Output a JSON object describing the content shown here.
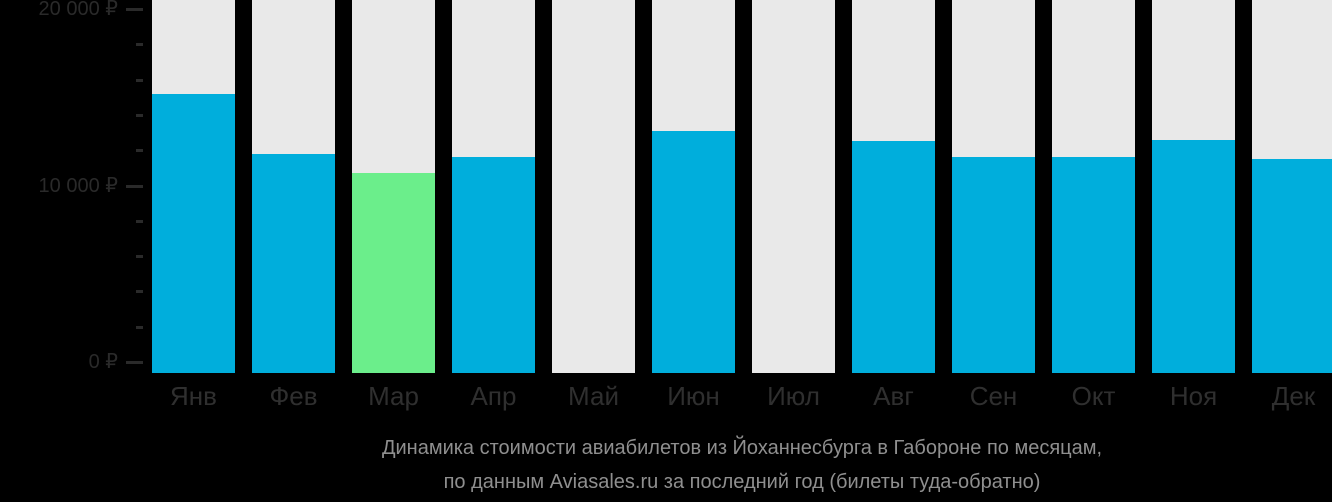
{
  "chart_data": {
    "type": "bar",
    "title": "Динамика стоимости авиабилетов из Йоханнесбурга в Габороне по месяцам, по данным Aviasales.ru за последний год (билеты туда-обратно)",
    "title_lines": [
      "Динамика стоимости авиабилетов из Йоханнесбурга в Габороне по месяцам,",
      "по данным Aviasales.ru за последний год (билеты туда-обратно)"
    ],
    "categories": [
      "Янв",
      "Фев",
      "Мар",
      "Апр",
      "Май",
      "Июн",
      "Июл",
      "Авг",
      "Сен",
      "Окт",
      "Ноя",
      "Дек"
    ],
    "values": [
      15200,
      11800,
      10700,
      11600,
      null,
      13100,
      null,
      12500,
      11600,
      11600,
      12600,
      11500
    ],
    "highlight_index": 2,
    "missing_months": [
      "Май",
      "Июл"
    ],
    "currency": "₽",
    "xlabel": "",
    "ylabel": "",
    "ylim": [
      0,
      20000
    ],
    "y_ticks": {
      "major": [
        {
          "value": 20000,
          "label": "20 000 ₽"
        },
        {
          "value": 10000,
          "label": "10 000 ₽"
        },
        {
          "value": 0,
          "label": "0 ₽"
        }
      ],
      "minor_step": 2000
    },
    "grid": false,
    "legend": false,
    "colors": {
      "bar": "#00AEDC",
      "bar_highlight": "#6BEE8B",
      "bar_background": "#E9E9E9",
      "axis_text": "#2A2A2A",
      "month_text": "#2F2F2F",
      "caption_text": "#8F8F8F",
      "background": "#000000"
    }
  }
}
